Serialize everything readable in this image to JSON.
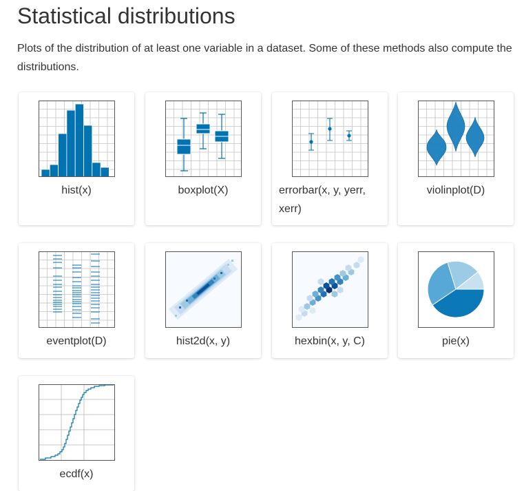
{
  "page": {
    "title": "Statistical distributions",
    "intro": "Plots of the distribution of at least one variable in a dataset. Some of these methods also compute the distributions."
  },
  "colors": {
    "primary": "#0173b1",
    "grid": "#b0b0b0",
    "frame": "#555555"
  },
  "cards": [
    {
      "label": "hist(x)",
      "icon": "histogram-icon"
    },
    {
      "label": "boxplot(X)",
      "icon": "boxplot-icon"
    },
    {
      "label": "errorbar(x, y, yerr, xerr)",
      "icon": "errorbar-icon"
    },
    {
      "label": "violinplot(D)",
      "icon": "violinplot-icon"
    },
    {
      "label": "eventplot(D)",
      "icon": "eventplot-icon"
    },
    {
      "label": "hist2d(x, y)",
      "icon": "hist2d-icon"
    },
    {
      "label": "hexbin(x, y, C)",
      "icon": "hexbin-icon"
    },
    {
      "label": "pie(x)",
      "icon": "pie-icon"
    },
    {
      "label": "ecdf(x)",
      "icon": "ecdf-icon"
    }
  ]
}
